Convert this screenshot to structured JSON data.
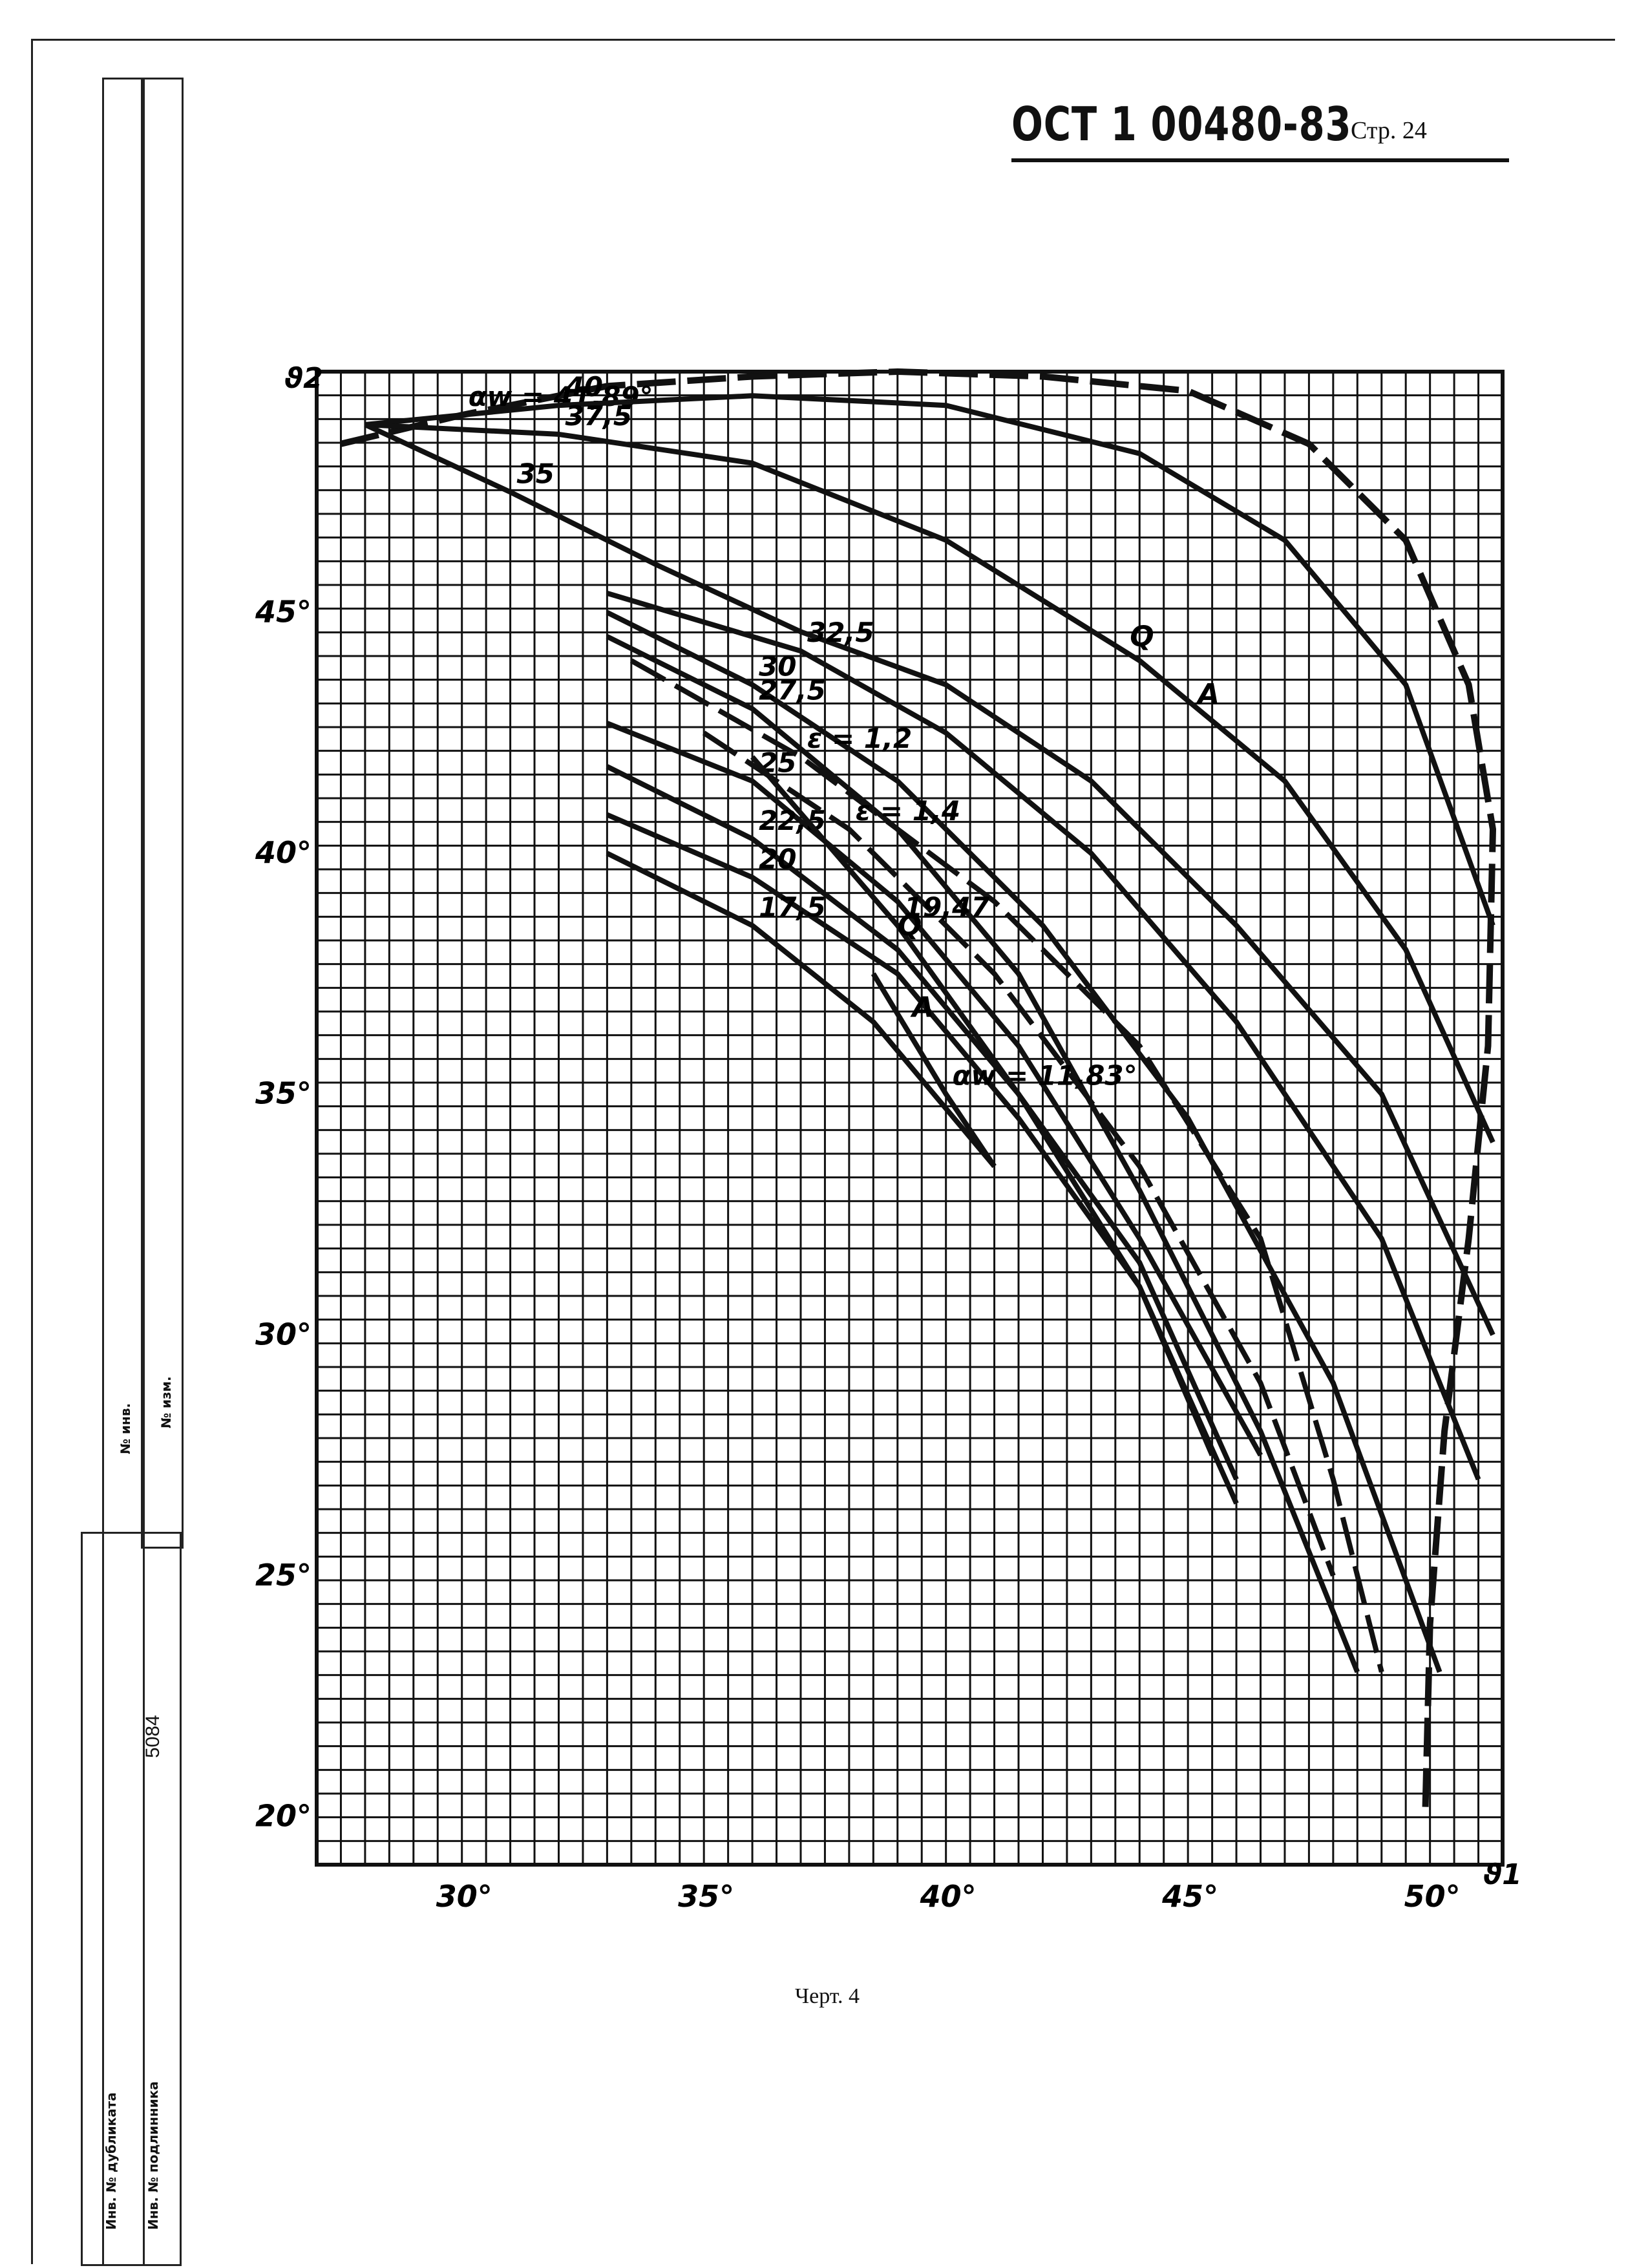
{
  "header": {
    "doc_code": "ОСТ 1 00480-83",
    "page_label": "Стр. 24"
  },
  "caption": "Черт. 4",
  "stamp": {
    "inv_no_label": "№ инв.",
    "dup_no_label": "№ изм.",
    "inv_orig_label": "Инв. № дубликата",
    "sign_label": "Инв. № подлинника",
    "inv_number": "5084"
  },
  "chart_data": {
    "type": "line",
    "xlabel": "ϑ1",
    "ylabel": "ϑ2",
    "xlim": [
      27,
      51.5
    ],
    "ylim": [
      19,
      50
    ],
    "grid": true,
    "x_ticks": [
      "30°",
      "35°",
      "40°",
      "45°",
      "50°"
    ],
    "y_ticks": [
      "20°",
      "25°",
      "30°",
      "35°",
      "40°",
      "45°"
    ],
    "series": [
      {
        "name": "αw = 41,89°",
        "points": [
          [
            27.5,
            48.5
          ],
          [
            30,
            49.1
          ],
          [
            33,
            49.7
          ],
          [
            36,
            49.9
          ],
          [
            39,
            50
          ],
          [
            42,
            49.9
          ],
          [
            45,
            49.6
          ],
          [
            47.5,
            48.5
          ],
          [
            49.5,
            46.5
          ],
          [
            50.8,
            43.5
          ],
          [
            51.3,
            40.5
          ],
          [
            51.2,
            36
          ],
          [
            50.8,
            32
          ],
          [
            50.3,
            28
          ],
          [
            50,
            24
          ],
          [
            49.9,
            20
          ]
        ]
      },
      {
        "name": "40",
        "points": [
          [
            28,
            48.9
          ],
          [
            32,
            49.3
          ],
          [
            36,
            49.5
          ],
          [
            40,
            49.3
          ],
          [
            44,
            48.3
          ],
          [
            47,
            46.5
          ],
          [
            49.5,
            43.5
          ],
          [
            51.3,
            38.5
          ]
        ]
      },
      {
        "name": "37,5",
        "points": [
          [
            28,
            48.9
          ],
          [
            32,
            48.7
          ],
          [
            36,
            48.1
          ],
          [
            40,
            46.5
          ],
          [
            44,
            44
          ],
          [
            47,
            41.5
          ],
          [
            49.5,
            38
          ],
          [
            51.3,
            34
          ]
        ]
      },
      {
        "name": "35",
        "points": [
          [
            28,
            48.9
          ],
          [
            31,
            47.5
          ],
          [
            34,
            46
          ],
          [
            37,
            44.6
          ],
          [
            40,
            43.5
          ],
          [
            43,
            41.5
          ],
          [
            46,
            38.5
          ],
          [
            49,
            35
          ],
          [
            51.3,
            30
          ]
        ]
      },
      {
        "name": "32,5",
        "points": [
          [
            33,
            45.4
          ],
          [
            37,
            44.2
          ],
          [
            40,
            42.5
          ],
          [
            43,
            40
          ],
          [
            46,
            36.5
          ],
          [
            49,
            32
          ],
          [
            51,
            27
          ]
        ]
      },
      {
        "name": "30",
        "points": [
          [
            33,
            45
          ],
          [
            36,
            43.5
          ],
          [
            39,
            41.5
          ],
          [
            42,
            38.5
          ],
          [
            45,
            34.5
          ],
          [
            48,
            29
          ],
          [
            50.2,
            23
          ]
        ]
      },
      {
        "name": "27,5",
        "points": [
          [
            33,
            44.5
          ],
          [
            36,
            43
          ],
          [
            39,
            40.5
          ],
          [
            41.5,
            37.5
          ],
          [
            44,
            33
          ],
          [
            46.5,
            28
          ],
          [
            48.5,
            23
          ]
        ]
      },
      {
        "name": "25",
        "points": [
          [
            33,
            42.7
          ],
          [
            36,
            41.5
          ],
          [
            39,
            39
          ],
          [
            41.5,
            36
          ],
          [
            44,
            32
          ],
          [
            46.5,
            27.5
          ]
        ]
      },
      {
        "name": "22,5",
        "points": [
          [
            33,
            41.8
          ],
          [
            36,
            40.3
          ],
          [
            39,
            38
          ],
          [
            41.5,
            35
          ],
          [
            44,
            31.5
          ],
          [
            46,
            27
          ]
        ]
      },
      {
        "name": "20",
        "points": [
          [
            33,
            40.8
          ],
          [
            36,
            39.5
          ],
          [
            39,
            37.5
          ],
          [
            41.5,
            34.5
          ],
          [
            44,
            31
          ],
          [
            45.5,
            27.5
          ]
        ]
      },
      {
        "name": "17,5",
        "points": [
          [
            33,
            40
          ],
          [
            36,
            38.5
          ],
          [
            38.5,
            36.5
          ],
          [
            41,
            33.5
          ]
        ]
      },
      {
        "name": "αw = 11,83°",
        "points": [
          [
            38.5,
            37.5
          ],
          [
            40,
            35
          ],
          [
            41,
            33.5
          ]
        ]
      },
      {
        "name": "ε = 1,2",
        "points": [
          [
            33.5,
            44
          ],
          [
            37,
            42
          ],
          [
            41,
            39
          ],
          [
            44,
            36
          ],
          [
            46.5,
            32
          ],
          [
            48,
            27
          ],
          [
            49,
            23
          ]
        ]
      },
      {
        "name": "ε = 1,4",
        "points": [
          [
            35,
            42.5
          ],
          [
            38,
            40.5
          ],
          [
            41,
            37.5
          ],
          [
            44,
            33.5
          ],
          [
            46.5,
            29
          ],
          [
            48,
            25
          ]
        ]
      },
      {
        "name": "19,47",
        "points": [
          [
            36,
            42
          ],
          [
            39,
            38.5
          ],
          [
            41.5,
            35
          ],
          [
            44,
            31
          ],
          [
            46,
            26.5
          ]
        ]
      }
    ],
    "labels": [
      "αw = 41,89°",
      "40",
      "37,5",
      "35",
      "32,5",
      "30",
      "27,5",
      "25",
      "22,5",
      "20",
      "17,5",
      "αw = 11,83°",
      "ε = 1,2",
      "ε = 1,4",
      "19,47",
      "Q",
      "A"
    ]
  }
}
